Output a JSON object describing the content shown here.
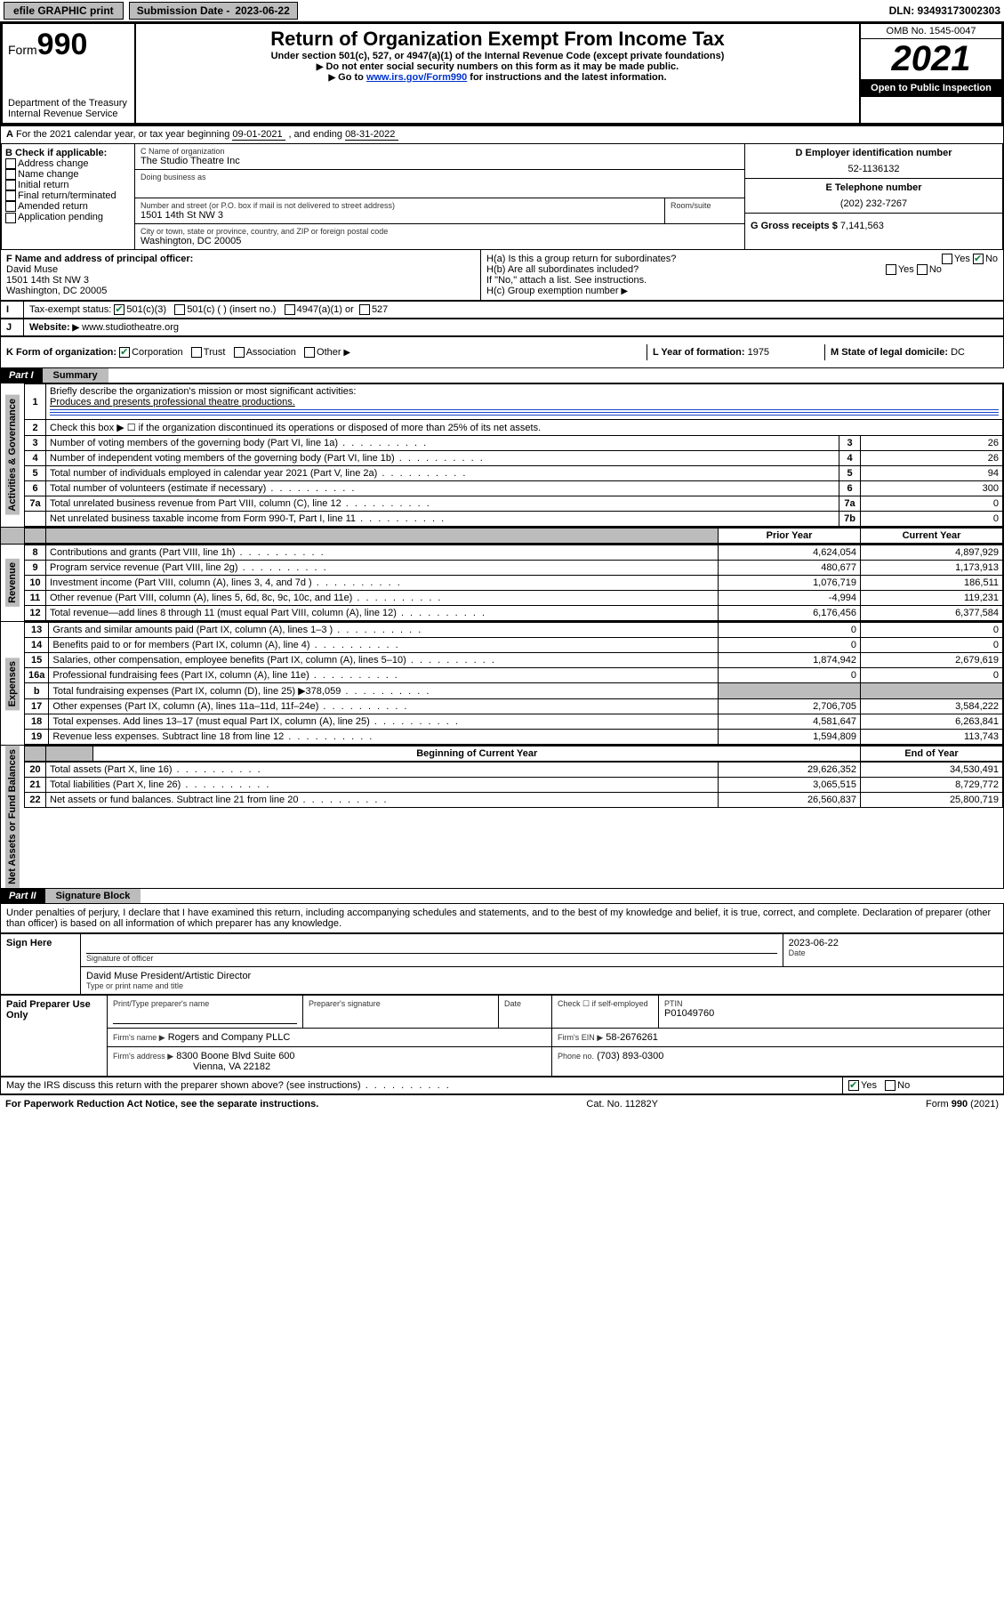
{
  "topbar": {
    "efile": "efile GRAPHIC print",
    "sub_label": "Submission Date -",
    "sub_date": "2023-06-22",
    "dln": "DLN: 93493173002303"
  },
  "header": {
    "form_label": "Form",
    "form_num": "990",
    "dept": "Department of the Treasury",
    "irs": "Internal Revenue Service",
    "title": "Return of Organization Exempt From Income Tax",
    "sub1": "Under section 501(c), 527, or 4947(a)(1) of the Internal Revenue Code (except private foundations)",
    "sub2": "Do not enter social security numbers on this form as it may be made public.",
    "sub3_pre": "Go to ",
    "sub3_link": "www.irs.gov/Form990",
    "sub3_post": " for instructions and the latest information.",
    "omb": "OMB No. 1545-0047",
    "year": "2021",
    "inspect": "Open to Public Inspection"
  },
  "lineA": {
    "text_a": "For the 2021 calendar year, or tax year beginning ",
    "begin": "09-01-2021",
    "mid": " , and ending ",
    "end": "08-31-2022"
  },
  "boxB": {
    "hdr": "B Check if applicable:",
    "items": [
      "Address change",
      "Name change",
      "Initial return",
      "Final return/terminated",
      "Amended return",
      "Application pending"
    ]
  },
  "boxC": {
    "label": "C Name of organization",
    "name": "The Studio Theatre Inc",
    "dba_label": "Doing business as",
    "addr_label": "Number and street (or P.O. box if mail is not delivered to street address)",
    "room_label": "Room/suite",
    "addr": "1501 14th St NW 3",
    "city_label": "City or town, state or province, country, and ZIP or foreign postal code",
    "city": "Washington, DC  20005"
  },
  "boxD": {
    "label": "D Employer identification number",
    "val": "52-1136132"
  },
  "boxE": {
    "label": "E Telephone number",
    "val": "(202) 232-7267"
  },
  "boxG": {
    "label": "G Gross receipts $",
    "val": "7,141,563"
  },
  "boxF": {
    "label": "F Name and address of principal officer:",
    "name": "David Muse",
    "addr1": "1501 14th St NW 3",
    "addr2": "Washington, DC  20005"
  },
  "boxH": {
    "ha": "H(a)  Is this a group return for subordinates?",
    "hb": "H(b)  Are all subordinates included?",
    "hbnote": "If \"No,\" attach a list. See instructions.",
    "hc": "H(c)  Group exemption number",
    "yes": "Yes",
    "no": "No"
  },
  "lineI": {
    "label": "Tax-exempt status:",
    "opts": [
      "501(c)(3)",
      "501(c) (  )  (insert no.)",
      "4947(a)(1) or",
      "527"
    ]
  },
  "lineJ": {
    "label": "Website:",
    "val": "www.studiotheatre.org"
  },
  "lineK": {
    "label": "K Form of organization:",
    "opts": [
      "Corporation",
      "Trust",
      "Association",
      "Other"
    ]
  },
  "lineL": {
    "label": "L Year of formation:",
    "val": "1975"
  },
  "lineM": {
    "label": "M State of legal domicile:",
    "val": "DC"
  },
  "part1": {
    "blk": "Part I",
    "title": "Summary"
  },
  "gov": {
    "l1": "Briefly describe the organization's mission or most significant activities:",
    "l1v": "Produces and presents professional theatre productions.",
    "l2": "Check this box ▶ ☐  if the organization discontinued its operations or disposed of more than 25% of its net assets.",
    "rows": [
      {
        "n": "3",
        "t": "Number of voting members of the governing body (Part VI, line 1a)",
        "v": "26"
      },
      {
        "n": "4",
        "t": "Number of independent voting members of the governing body (Part VI, line 1b)",
        "v": "26"
      },
      {
        "n": "5",
        "t": "Total number of individuals employed in calendar year 2021 (Part V, line 2a)",
        "v": "94"
      },
      {
        "n": "6",
        "t": "Total number of volunteers (estimate if necessary)",
        "v": "300"
      },
      {
        "n": "7a",
        "t": "Total unrelated business revenue from Part VIII, column (C), line 12",
        "v": "0"
      },
      {
        "n": "7b",
        "t": "Net unrelated business taxable income from Form 990-T, Part I, line 11",
        "v": "0"
      }
    ]
  },
  "colhdr": {
    "prior": "Prior Year",
    "curr": "Current Year",
    "boy": "Beginning of Current Year",
    "eoy": "End of Year"
  },
  "rev": [
    {
      "n": "8",
      "t": "Contributions and grants (Part VIII, line 1h)",
      "p": "4,624,054",
      "c": "4,897,929"
    },
    {
      "n": "9",
      "t": "Program service revenue (Part VIII, line 2g)",
      "p": "480,677",
      "c": "1,173,913"
    },
    {
      "n": "10",
      "t": "Investment income (Part VIII, column (A), lines 3, 4, and 7d )",
      "p": "1,076,719",
      "c": "186,511"
    },
    {
      "n": "11",
      "t": "Other revenue (Part VIII, column (A), lines 5, 6d, 8c, 9c, 10c, and 11e)",
      "p": "-4,994",
      "c": "119,231"
    },
    {
      "n": "12",
      "t": "Total revenue—add lines 8 through 11 (must equal Part VIII, column (A), line 12)",
      "p": "6,176,456",
      "c": "6,377,584"
    }
  ],
  "exp": [
    {
      "n": "13",
      "t": "Grants and similar amounts paid (Part IX, column (A), lines 1–3 )",
      "p": "0",
      "c": "0"
    },
    {
      "n": "14",
      "t": "Benefits paid to or for members (Part IX, column (A), line 4)",
      "p": "0",
      "c": "0"
    },
    {
      "n": "15",
      "t": "Salaries, other compensation, employee benefits (Part IX, column (A), lines 5–10)",
      "p": "1,874,942",
      "c": "2,679,619"
    },
    {
      "n": "16a",
      "t": "Professional fundraising fees (Part IX, column (A), line 11e)",
      "p": "0",
      "c": "0"
    },
    {
      "n": "b",
      "t": "Total fundraising expenses (Part IX, column (D), line 25) ▶378,059",
      "p": "",
      "c": "",
      "gray": true
    },
    {
      "n": "17",
      "t": "Other expenses (Part IX, column (A), lines 11a–11d, 11f–24e)",
      "p": "2,706,705",
      "c": "3,584,222"
    },
    {
      "n": "18",
      "t": "Total expenses. Add lines 13–17 (must equal Part IX, column (A), line 25)",
      "p": "4,581,647",
      "c": "6,263,841"
    },
    {
      "n": "19",
      "t": "Revenue less expenses. Subtract line 18 from line 12",
      "p": "1,594,809",
      "c": "113,743"
    }
  ],
  "net": [
    {
      "n": "20",
      "t": "Total assets (Part X, line 16)",
      "p": "29,626,352",
      "c": "34,530,491"
    },
    {
      "n": "21",
      "t": "Total liabilities (Part X, line 26)",
      "p": "3,065,515",
      "c": "8,729,772"
    },
    {
      "n": "22",
      "t": "Net assets or fund balances. Subtract line 21 from line 20",
      "p": "26,560,837",
      "c": "25,800,719"
    }
  ],
  "vlabels": {
    "gov": "Activities & Governance",
    "rev": "Revenue",
    "exp": "Expenses",
    "net": "Net Assets or Fund Balances"
  },
  "part2": {
    "blk": "Part II",
    "title": "Signature Block"
  },
  "sig": {
    "decl": "Under penalties of perjury, I declare that I have examined this return, including accompanying schedules and statements, and to the best of my knowledge and belief, it is true, correct, and complete. Declaration of preparer (other than officer) is based on all information of which preparer has any knowledge.",
    "here": "Sign Here",
    "sig_officer": "Signature of officer",
    "date": "Date",
    "date_val": "2023-06-22",
    "typed": "David Muse  President/Artistic Director",
    "typed_lbl": "Type or print name and title"
  },
  "paid": {
    "left": "Paid Preparer Use Only",
    "c1": "Print/Type preparer's name",
    "c2": "Preparer's signature",
    "c3": "Date",
    "c4a": "Check ☐ if self-employed",
    "c5": "PTIN",
    "c5v": "P01049760",
    "firm_lbl": "Firm's name  ▶",
    "firm": "Rogers and Company PLLC",
    "ein_lbl": "Firm's EIN ▶",
    "ein": "58-2676261",
    "addr_lbl": "Firm's address ▶",
    "addr": "8300 Boone Blvd Suite 600",
    "addr2": "Vienna, VA  22182",
    "phone_lbl": "Phone no.",
    "phone": "(703) 893-0300"
  },
  "discuss": {
    "q": "May the IRS discuss this return with the preparer shown above? (see instructions)",
    "yes": "Yes",
    "no": "No"
  },
  "footer": {
    "l": "For Paperwork Reduction Act Notice, see the separate instructions.",
    "c": "Cat. No. 11282Y",
    "r": "Form 990 (2021)"
  },
  "colors": {
    "link": "#0033cc",
    "checkgreen": "#0a7d3a",
    "gray": "#bcbcbc"
  }
}
